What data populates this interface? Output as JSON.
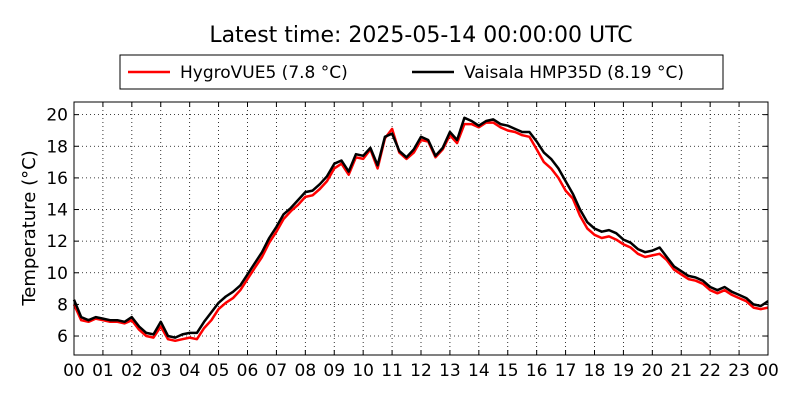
{
  "chart_data": {
    "type": "line",
    "title": "Latest time: 2025-05-14 00:00:00 UTC",
    "xlabel": "",
    "ylabel": "Temperature (°C)",
    "x_ticks": [
      "00",
      "01",
      "02",
      "03",
      "04",
      "05",
      "06",
      "07",
      "08",
      "09",
      "10",
      "11",
      "12",
      "13",
      "14",
      "15",
      "16",
      "17",
      "18",
      "19",
      "20",
      "21",
      "22",
      "23",
      "00"
    ],
    "y_ticks": [
      "6",
      "8",
      "10",
      "12",
      "14",
      "16",
      "18",
      "20"
    ],
    "xlim": [
      0,
      24
    ],
    "ylim": [
      4.8,
      20.8
    ],
    "grid": true,
    "legend_position": "top",
    "x": [
      0,
      0.25,
      0.5,
      0.75,
      1,
      1.25,
      1.5,
      1.75,
      2,
      2.25,
      2.5,
      2.75,
      3,
      3.25,
      3.5,
      3.75,
      4,
      4.25,
      4.5,
      4.75,
      5,
      5.25,
      5.5,
      5.75,
      6,
      6.25,
      6.5,
      6.75,
      7,
      7.25,
      7.5,
      7.75,
      8,
      8.25,
      8.5,
      8.75,
      9,
      9.25,
      9.5,
      9.75,
      10,
      10.25,
      10.5,
      10.75,
      11,
      11.25,
      11.5,
      11.75,
      12,
      12.25,
      12.5,
      12.75,
      13,
      13.25,
      13.5,
      13.75,
      14,
      14.25,
      14.5,
      14.75,
      15,
      15.25,
      15.5,
      15.75,
      16,
      16.25,
      16.5,
      16.75,
      17,
      17.25,
      17.5,
      17.75,
      18,
      18.25,
      18.5,
      18.75,
      19,
      19.25,
      19.5,
      19.75,
      20,
      20.25,
      20.5,
      20.75,
      21,
      21.25,
      21.5,
      21.75,
      22,
      22.25,
      22.5,
      22.75,
      23,
      23.25,
      23.5,
      23.75,
      24
    ],
    "series": [
      {
        "name": "HygroVUE5 (7.8 °C)",
        "color": "#ff0000",
        "values": [
          8.0,
          7.0,
          6.9,
          7.1,
          7.0,
          6.9,
          6.9,
          6.8,
          7.0,
          6.4,
          6.0,
          5.9,
          6.6,
          5.8,
          5.7,
          5.8,
          5.9,
          5.8,
          6.5,
          7.0,
          7.7,
          8.1,
          8.4,
          8.9,
          9.6,
          10.3,
          11.0,
          11.9,
          12.6,
          13.4,
          13.9,
          14.3,
          14.8,
          14.9,
          15.3,
          15.8,
          16.6,
          16.9,
          16.2,
          17.3,
          17.2,
          17.8,
          16.6,
          18.5,
          19.1,
          17.6,
          17.2,
          17.6,
          18.4,
          18.3,
          17.3,
          17.8,
          18.7,
          18.2,
          19.4,
          19.4,
          19.2,
          19.5,
          19.5,
          19.2,
          19.0,
          18.9,
          18.7,
          18.6,
          17.8,
          17.0,
          16.6,
          16.0,
          15.2,
          14.7,
          13.6,
          12.8,
          12.4,
          12.2,
          12.3,
          12.1,
          11.8,
          11.6,
          11.2,
          11.0,
          11.1,
          11.2,
          10.8,
          10.2,
          9.9,
          9.6,
          9.5,
          9.3,
          8.9,
          8.7,
          8.9,
          8.6,
          8.4,
          8.2,
          7.8,
          7.7,
          7.8
        ]
      },
      {
        "name": "Vaisala HMP35D (8.19 °C)",
        "color": "#000000",
        "values": [
          8.3,
          7.2,
          7.0,
          7.2,
          7.1,
          7.0,
          7.0,
          6.9,
          7.2,
          6.6,
          6.2,
          6.1,
          6.9,
          6.0,
          5.9,
          6.1,
          6.2,
          6.2,
          6.9,
          7.5,
          8.1,
          8.5,
          8.8,
          9.2,
          9.9,
          10.6,
          11.3,
          12.2,
          12.9,
          13.7,
          14.1,
          14.6,
          15.1,
          15.2,
          15.6,
          16.1,
          16.9,
          17.1,
          16.4,
          17.5,
          17.4,
          17.9,
          16.8,
          18.6,
          18.8,
          17.7,
          17.3,
          17.8,
          18.6,
          18.4,
          17.4,
          17.9,
          18.9,
          18.4,
          19.8,
          19.6,
          19.3,
          19.6,
          19.7,
          19.4,
          19.3,
          19.1,
          18.9,
          18.9,
          18.3,
          17.6,
          17.2,
          16.6,
          15.8,
          15.0,
          14.0,
          13.2,
          12.8,
          12.6,
          12.7,
          12.5,
          12.1,
          11.9,
          11.5,
          11.3,
          11.4,
          11.6,
          11.0,
          10.4,
          10.1,
          9.8,
          9.7,
          9.5,
          9.1,
          8.9,
          9.1,
          8.8,
          8.6,
          8.4,
          8.0,
          7.9,
          8.2
        ]
      }
    ]
  }
}
